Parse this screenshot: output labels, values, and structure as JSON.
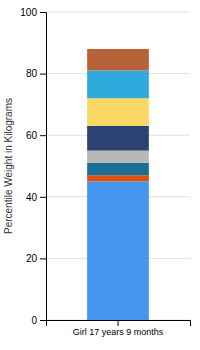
{
  "chart_data": {
    "type": "bar",
    "stacked": true,
    "categories": [
      "Girl 17 years 9 months"
    ],
    "series": [
      {
        "color": "#4495eb",
        "values": [
          45
        ]
      },
      {
        "color": "#e05010",
        "values": [
          2
        ]
      },
      {
        "color": "#1a7094",
        "values": [
          4
        ]
      },
      {
        "color": "#b8b8b8",
        "values": [
          4
        ]
      },
      {
        "color": "#2b4272",
        "values": [
          8
        ]
      },
      {
        "color": "#fcd966",
        "values": [
          9
        ]
      },
      {
        "color": "#30aadc",
        "values": [
          9
        ]
      },
      {
        "color": "#b8623a",
        "values": [
          7
        ]
      }
    ],
    "ylabel": "Percentile Weight in Kilograms",
    "ylim": [
      0,
      100
    ],
    "yticks": [
      0,
      20,
      40,
      60,
      80,
      100
    ],
    "grid": true
  }
}
